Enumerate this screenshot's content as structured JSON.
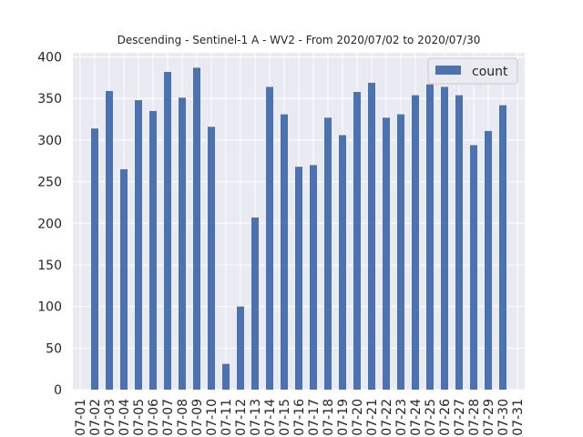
{
  "chart_data": {
    "type": "bar",
    "title": "Descending - Sentinel-1 A - WV2 - From 2020/07/02 to 2020/07/30",
    "xlabel": "",
    "ylabel": "",
    "categories": [
      "07-01",
      "07-02",
      "07-03",
      "07-04",
      "07-05",
      "07-06",
      "07-07",
      "07-08",
      "07-09",
      "07-10",
      "07-11",
      "07-12",
      "07-13",
      "07-14",
      "07-15",
      "07-16",
      "07-17",
      "07-18",
      "07-19",
      "07-20",
      "07-21",
      "07-22",
      "07-23",
      "07-24",
      "07-25",
      "07-26",
      "07-27",
      "07-28",
      "07-29",
      "07-30",
      "07-31"
    ],
    "tick_labels": [
      "07-01",
      "07-02",
      "07-03",
      "07-04",
      "07-05",
      "07-06",
      "07-07",
      "07-08",
      "07-09",
      "07-10",
      "07-11",
      "07-12",
      "07-13",
      "07-14",
      "07-15",
      "07-16",
      "07-17",
      "07-18",
      "07-19",
      "07-20",
      "07-21",
      "07-22",
      "07-23",
      "07-24",
      "07-25",
      "07-26",
      "07-27",
      "07-28",
      "07-29",
      "07-30",
      "07-31"
    ],
    "series": [
      {
        "name": "count",
        "color": "#4c72b0",
        "values": [
          null,
          314,
          359,
          265,
          348,
          335,
          382,
          351,
          387,
          316,
          31,
          100,
          207,
          364,
          331,
          268,
          270,
          327,
          306,
          358,
          369,
          327,
          331,
          354,
          367,
          364,
          354,
          294,
          311,
          342,
          null
        ]
      }
    ],
    "yticks": [
      0,
      50,
      100,
      150,
      200,
      250,
      300,
      350,
      400
    ],
    "ylim": [
      0,
      405
    ],
    "grid": true,
    "legend_position": "top-right",
    "background": "#eaeaf2"
  }
}
